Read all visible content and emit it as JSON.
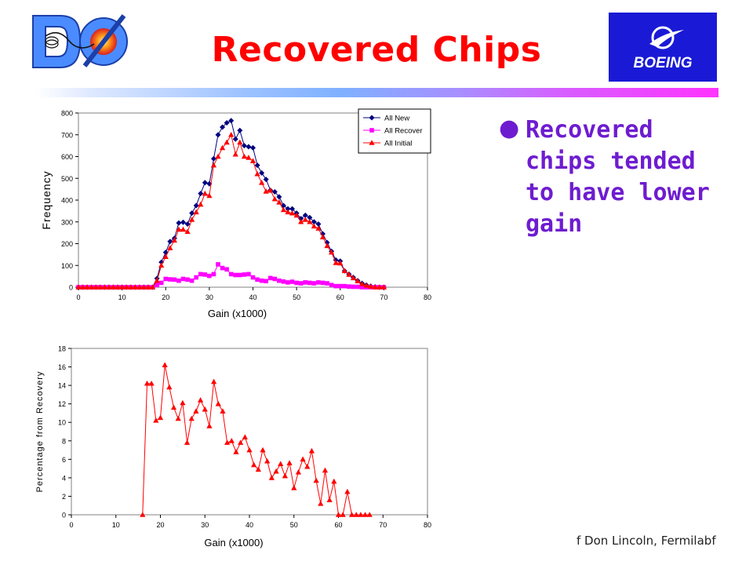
{
  "slide": {
    "title": "Recovered Chips",
    "bullet": "Recovered chips tended to have lower gain",
    "footer": "f Don Lincoln, Fermilabf",
    "d0_logo_text": "DØ",
    "boeing_logo_text": "BOEING"
  },
  "colors": {
    "title": "#ff0000",
    "bullet_text": "#6e1cd0",
    "all_new": "#000080",
    "all_recover": "#ff00ff",
    "all_initial": "#ff0000"
  },
  "chart_data": [
    {
      "type": "line",
      "xlabel": "Gain (x1000)",
      "ylabel": "Frequency",
      "xlim": [
        0,
        80
      ],
      "ylim": [
        0,
        800
      ],
      "xticks": [
        "0",
        "10",
        "20",
        "30",
        "40",
        "50",
        "60",
        "70",
        "80"
      ],
      "yticks": [
        "0",
        "100",
        "200",
        "300",
        "400",
        "500",
        "600",
        "700",
        "800"
      ],
      "legend_position": "top-right",
      "grid": false,
      "series": [
        {
          "name": "All New",
          "marker": "diamond",
          "x": [
            0,
            1,
            2,
            3,
            4,
            5,
            6,
            7,
            8,
            9,
            10,
            11,
            12,
            13,
            14,
            15,
            16,
            17,
            18,
            19,
            20,
            21,
            22,
            23,
            24,
            25,
            26,
            27,
            28,
            29,
            30,
            31,
            32,
            33,
            34,
            35,
            36,
            37,
            38,
            39,
            40,
            41,
            42,
            43,
            44,
            45,
            46,
            47,
            48,
            49,
            50,
            51,
            52,
            53,
            54,
            55,
            56,
            57,
            58,
            59,
            60,
            61,
            62,
            63,
            64,
            65,
            66,
            67,
            68,
            69,
            70
          ],
          "y": [
            0,
            0,
            0,
            0,
            0,
            0,
            0,
            0,
            0,
            0,
            0,
            0,
            0,
            0,
            0,
            0,
            0,
            0,
            40,
            115,
            160,
            210,
            225,
            295,
            298,
            290,
            340,
            375,
            430,
            480,
            475,
            590,
            700,
            735,
            755,
            765,
            680,
            720,
            650,
            645,
            640,
            560,
            525,
            495,
            445,
            438,
            415,
            375,
            360,
            360,
            340,
            315,
            330,
            320,
            300,
            290,
            245,
            205,
            165,
            125,
            120,
            75,
            60,
            45,
            30,
            18,
            10,
            5,
            2,
            0,
            0
          ]
        },
        {
          "name": "All Recover",
          "marker": "square",
          "x": [
            0,
            1,
            2,
            3,
            4,
            5,
            6,
            7,
            8,
            9,
            10,
            11,
            12,
            13,
            14,
            15,
            16,
            17,
            18,
            19,
            20,
            21,
            22,
            23,
            24,
            25,
            26,
            27,
            28,
            29,
            30,
            31,
            32,
            33,
            34,
            35,
            36,
            37,
            38,
            39,
            40,
            41,
            42,
            43,
            44,
            45,
            46,
            47,
            48,
            49,
            50,
            51,
            52,
            53,
            54,
            55,
            56,
            57,
            58,
            59,
            60,
            61,
            62,
            63,
            64,
            65,
            66,
            67,
            68,
            69,
            70
          ],
          "y": [
            0,
            0,
            0,
            0,
            0,
            0,
            0,
            0,
            0,
            0,
            0,
            0,
            0,
            0,
            0,
            0,
            0,
            0,
            10,
            20,
            38,
            36,
            35,
            30,
            38,
            35,
            30,
            45,
            60,
            58,
            52,
            60,
            105,
            88,
            82,
            60,
            56,
            56,
            58,
            60,
            45,
            35,
            30,
            28,
            42,
            38,
            30,
            26,
            22,
            25,
            20,
            18,
            22,
            20,
            18,
            22,
            20,
            18,
            10,
            5,
            5,
            5,
            3,
            2,
            2,
            0,
            0,
            0,
            0,
            0,
            0
          ]
        },
        {
          "name": "All Initial",
          "marker": "triangle",
          "x": [
            0,
            1,
            2,
            3,
            4,
            5,
            6,
            7,
            8,
            9,
            10,
            11,
            12,
            13,
            14,
            15,
            16,
            17,
            18,
            19,
            20,
            21,
            22,
            23,
            24,
            25,
            26,
            27,
            28,
            29,
            30,
            31,
            32,
            33,
            34,
            35,
            36,
            37,
            38,
            39,
            40,
            41,
            42,
            43,
            44,
            45,
            46,
            47,
            48,
            49,
            50,
            51,
            52,
            53,
            54,
            55,
            56,
            57,
            58,
            59,
            60,
            61,
            62,
            63,
            64,
            65,
            66,
            67,
            68,
            69,
            70
          ],
          "y": [
            0,
            0,
            0,
            0,
            0,
            0,
            0,
            0,
            0,
            0,
            0,
            0,
            0,
            0,
            0,
            0,
            0,
            0,
            30,
            100,
            140,
            180,
            215,
            265,
            265,
            255,
            310,
            345,
            380,
            430,
            420,
            560,
            600,
            640,
            665,
            700,
            610,
            665,
            600,
            595,
            580,
            520,
            480,
            440,
            445,
            405,
            390,
            355,
            345,
            340,
            330,
            300,
            310,
            300,
            280,
            270,
            230,
            190,
            160,
            112,
            110,
            75,
            58,
            42,
            28,
            15,
            8,
            4,
            0,
            0,
            0
          ]
        }
      ]
    },
    {
      "type": "line",
      "xlabel": "Gain (x1000)",
      "ylabel": "Percentage from Recovery",
      "xlim": [
        0,
        80
      ],
      "ylim": [
        0,
        18
      ],
      "xticks": [
        "0",
        "10",
        "20",
        "30",
        "40",
        "50",
        "60",
        "70",
        "80"
      ],
      "yticks": [
        "0",
        "2",
        "4",
        "6",
        "8",
        "10",
        "12",
        "14",
        "16",
        "18"
      ],
      "grid": false,
      "series": [
        {
          "marker": "triangle",
          "x": [
            16,
            17,
            18,
            19,
            20,
            21,
            22,
            23,
            24,
            25,
            26,
            27,
            28,
            29,
            30,
            31,
            32,
            33,
            34,
            35,
            36,
            37,
            38,
            39,
            40,
            41,
            42,
            43,
            44,
            45,
            46,
            47,
            48,
            49,
            50,
            51,
            52,
            53,
            54,
            55,
            56,
            57,
            58,
            59,
            60,
            61,
            62,
            63,
            64,
            65,
            66,
            67
          ],
          "y": [
            0,
            14.2,
            14.2,
            10.2,
            10.5,
            16.2,
            13.8,
            11.6,
            10.4,
            12.1,
            7.8,
            10.4,
            11.2,
            12.4,
            11.4,
            9.6,
            14.4,
            12.0,
            11.2,
            7.8,
            8.0,
            6.8,
            7.8,
            8.4,
            7.0,
            5.4,
            4.9,
            7.0,
            5.8,
            4.0,
            4.7,
            5.5,
            4.2,
            5.6,
            2.9,
            4.6,
            6.0,
            5.2,
            6.9,
            3.7,
            1.2,
            4.8,
            1.6,
            3.6,
            0,
            0,
            2.5,
            0,
            0,
            0,
            0,
            0
          ]
        }
      ]
    }
  ]
}
